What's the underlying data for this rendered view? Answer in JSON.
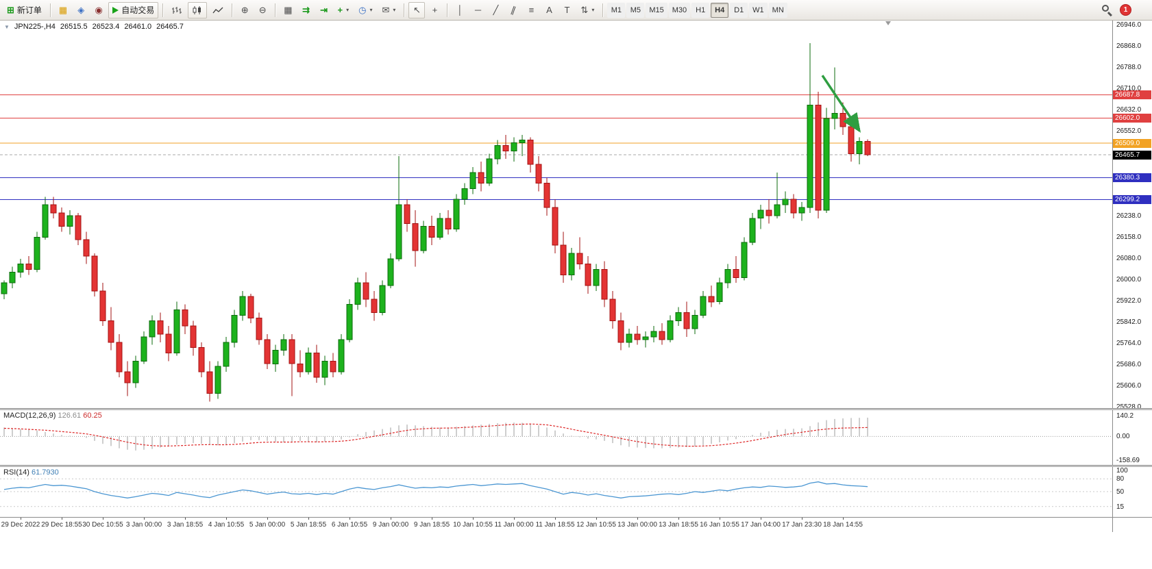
{
  "toolbar": {
    "new_order_label": "新订单",
    "autotrading_label": "自动交易",
    "timeframes": [
      "M1",
      "M5",
      "M15",
      "M30",
      "H1",
      "H4",
      "D1",
      "W1",
      "MN"
    ],
    "active_timeframe": "H4",
    "notification_count": "1"
  },
  "icons": {
    "new_order": "⊞",
    "market_watch": "▦",
    "navigator": "◈",
    "terminal": "◉",
    "zoom_in": "⊕",
    "zoom_out": "⊖",
    "tile_windows": "▦",
    "auto_scroll": "⇉",
    "chart_shift": "⇥",
    "indicators_plus": "+",
    "periods_clock": "◷",
    "templates_mail": "✉",
    "cursor": "↖",
    "crosshair": "+",
    "vertical_line": "│",
    "horizontal_line": "─",
    "trendline": "╱",
    "channel": "∥",
    "fibonacci": "≡",
    "text": "A",
    "text_label": "T",
    "arrows": "⇅",
    "caret": "▾",
    "one_click": "▼"
  },
  "chart": {
    "title": {
      "symbol_period": "JPN225-,H4",
      "open": "26515.5",
      "high": "26523.4",
      "low": "26461.0",
      "close": "26465.7"
    },
    "price_axis": {
      "min": 25528,
      "max": 26946,
      "ticks": [
        "26946.0",
        "26868.0",
        "26788.0",
        "26710.0",
        "26632.0",
        "26552.0",
        "26238.0",
        "26158.0",
        "26080.0",
        "26000.0",
        "25922.0",
        "25842.0",
        "25764.0",
        "25686.0",
        "25606.0",
        "25528.0"
      ]
    },
    "hlines": [
      {
        "price": 26687.8,
        "label": "26687.8",
        "color": "#e04040"
      },
      {
        "price": 26602.0,
        "label": "26602.0",
        "color": "#e04040"
      },
      {
        "price": 26509.0,
        "label": "26509.0",
        "color": "#f2a224"
      },
      {
        "price": 26380.3,
        "label": "26380.3",
        "color": "#2f2fc0"
      },
      {
        "price": 26299.2,
        "label": "26299.2",
        "color": "#2f2fc0"
      }
    ],
    "current_price": {
      "price": 26465.7,
      "label": "26465.7",
      "bg": "#000000"
    },
    "annotation_arrow": {
      "from_bar": 99.5,
      "from_price": 26760,
      "to_bar": 104,
      "to_price": 26555
    },
    "shift_marker_bar": 107.5,
    "colors": {
      "up": "#1db21d",
      "up_stroke": "#0b6b0b",
      "down": "#e33434",
      "down_stroke": "#a31212",
      "macd_hist": "#c2c2c2",
      "macd_signal": "#dd2626",
      "rsi_line": "#4a96d2",
      "annotation": "#2f9e41",
      "current_line": "#aaaaaa"
    }
  },
  "chart_data": {
    "type": "candlestick",
    "symbol": "JPN225-",
    "timeframe": "H4",
    "label_start_bar": 2,
    "label_every": 5,
    "time_labels": [
      "29 Dec 2022",
      "29 Dec 18:55",
      "30 Dec 10:55",
      "3 Jan 00:00",
      "3 Jan 18:55",
      "4 Jan 10:55",
      "5 Jan 00:00",
      "5 Jan 18:55",
      "6 Jan 10:55",
      "9 Jan 00:00",
      "9 Jan 18:55",
      "10 Jan 10:55",
      "11 Jan 00:00",
      "11 Jan 18:55",
      "12 Jan 10:55",
      "13 Jan 00:00",
      "13 Jan 18:55",
      "16 Jan 10:55",
      "17 Jan 04:00",
      "17 Jan 23:30",
      "18 Jan 14:55"
    ],
    "ohlc": [
      [
        25950,
        26000,
        25930,
        25990
      ],
      [
        25990,
        26050,
        25970,
        26030
      ],
      [
        26030,
        26080,
        26010,
        26060
      ],
      [
        26060,
        26090,
        26020,
        26040
      ],
      [
        26040,
        26180,
        26030,
        26160
      ],
      [
        26160,
        26310,
        26150,
        26280
      ],
      [
        26280,
        26310,
        26230,
        26250
      ],
      [
        26250,
        26270,
        26180,
        26200
      ],
      [
        26200,
        26260,
        26170,
        26240
      ],
      [
        26240,
        26250,
        26130,
        26150
      ],
      [
        26150,
        26180,
        26060,
        26090
      ],
      [
        26090,
        26100,
        25940,
        25960
      ],
      [
        25960,
        25990,
        25830,
        25850
      ],
      [
        25850,
        25900,
        25740,
        25770
      ],
      [
        25770,
        25800,
        25640,
        25660
      ],
      [
        25660,
        25700,
        25570,
        25620
      ],
      [
        25620,
        25720,
        25600,
        25700
      ],
      [
        25700,
        25810,
        25690,
        25790
      ],
      [
        25790,
        25870,
        25760,
        25850
      ],
      [
        25850,
        25880,
        25770,
        25800
      ],
      [
        25800,
        25830,
        25700,
        25730
      ],
      [
        25730,
        25920,
        25720,
        25890
      ],
      [
        25890,
        25910,
        25800,
        25830
      ],
      [
        25830,
        25850,
        25720,
        25750
      ],
      [
        25750,
        25770,
        25640,
        25660
      ],
      [
        25660,
        25700,
        25550,
        25580
      ],
      [
        25580,
        25700,
        25560,
        25680
      ],
      [
        25680,
        25790,
        25660,
        25770
      ],
      [
        25770,
        25890,
        25750,
        25870
      ],
      [
        25870,
        25960,
        25850,
        25940
      ],
      [
        25940,
        25950,
        25840,
        25860
      ],
      [
        25860,
        25880,
        25760,
        25780
      ],
      [
        25780,
        25800,
        25670,
        25690
      ],
      [
        25690,
        25760,
        25660,
        25740
      ],
      [
        25740,
        25800,
        25720,
        25780
      ],
      [
        25780,
        25800,
        25570,
        25690
      ],
      [
        25690,
        25740,
        25640,
        25660
      ],
      [
        25660,
        25750,
        25650,
        25730
      ],
      [
        25730,
        25760,
        25620,
        25640
      ],
      [
        25640,
        25720,
        25610,
        25700
      ],
      [
        25700,
        25730,
        25640,
        25660
      ],
      [
        25660,
        25800,
        25650,
        25780
      ],
      [
        25780,
        25930,
        25770,
        25910
      ],
      [
        25910,
        26010,
        25890,
        25990
      ],
      [
        25990,
        26030,
        25900,
        25930
      ],
      [
        25930,
        25960,
        25850,
        25880
      ],
      [
        25880,
        26000,
        25870,
        25980
      ],
      [
        25980,
        26100,
        25970,
        26080
      ],
      [
        26080,
        26460,
        26070,
        26280
      ],
      [
        26280,
        26300,
        26180,
        26210
      ],
      [
        26210,
        26260,
        26050,
        26110
      ],
      [
        26110,
        26220,
        26100,
        26200
      ],
      [
        26200,
        26240,
        26130,
        26160
      ],
      [
        26160,
        26250,
        26150,
        26230
      ],
      [
        26230,
        26260,
        26170,
        26190
      ],
      [
        26190,
        26320,
        26180,
        26300
      ],
      [
        26300,
        26360,
        26280,
        26340
      ],
      [
        26340,
        26420,
        26320,
        26400
      ],
      [
        26400,
        26440,
        26330,
        26360
      ],
      [
        26360,
        26470,
        26350,
        26450
      ],
      [
        26450,
        26520,
        26430,
        26500
      ],
      [
        26500,
        26540,
        26450,
        26480
      ],
      [
        26480,
        26530,
        26440,
        26510
      ],
      [
        26510,
        26540,
        26460,
        26520
      ],
      [
        26520,
        26530,
        26400,
        26430
      ],
      [
        26430,
        26460,
        26330,
        26360
      ],
      [
        26360,
        26380,
        26240,
        26270
      ],
      [
        26270,
        26300,
        26100,
        26130
      ],
      [
        26130,
        26180,
        25990,
        26020
      ],
      [
        26020,
        26120,
        26000,
        26100
      ],
      [
        26100,
        26160,
        26040,
        26060
      ],
      [
        26060,
        26090,
        25950,
        25980
      ],
      [
        25980,
        26060,
        25960,
        26040
      ],
      [
        26040,
        26070,
        25900,
        25930
      ],
      [
        25930,
        25960,
        25820,
        25850
      ],
      [
        25850,
        25880,
        25740,
        25770
      ],
      [
        25770,
        25820,
        25750,
        25800
      ],
      [
        25800,
        25830,
        25760,
        25780
      ],
      [
        25780,
        25810,
        25750,
        25790
      ],
      [
        25790,
        25830,
        25770,
        25810
      ],
      [
        25810,
        25840,
        25760,
        25780
      ],
      [
        25780,
        25870,
        25770,
        25850
      ],
      [
        25850,
        25900,
        25830,
        25880
      ],
      [
        25880,
        25920,
        25790,
        25820
      ],
      [
        25820,
        25890,
        25800,
        25870
      ],
      [
        25870,
        25960,
        25860,
        25940
      ],
      [
        25940,
        25980,
        25900,
        25920
      ],
      [
        25920,
        26010,
        25910,
        25990
      ],
      [
        25990,
        26060,
        25970,
        26040
      ],
      [
        26040,
        26090,
        25990,
        26010
      ],
      [
        26010,
        26160,
        26000,
        26140
      ],
      [
        26140,
        26250,
        26130,
        26230
      ],
      [
        26230,
        26280,
        26190,
        26260
      ],
      [
        26260,
        26300,
        26210,
        26240
      ],
      [
        26240,
        26400,
        26230,
        26280
      ],
      [
        26280,
        26330,
        26250,
        26300
      ],
      [
        26300,
        26320,
        26230,
        26250
      ],
      [
        26250,
        26290,
        26220,
        26270
      ],
      [
        26270,
        26880,
        26250,
        26650
      ],
      [
        26650,
        26700,
        26230,
        26260
      ],
      [
        26260,
        26640,
        26250,
        26600
      ],
      [
        26600,
        26790,
        26560,
        26620
      ],
      [
        26620,
        26660,
        26540,
        26570
      ],
      [
        26570,
        26600,
        26440,
        26470
      ],
      [
        26470,
        26530,
        26430,
        26515
      ],
      [
        26515.5,
        26523.4,
        26461.0,
        26465.7
      ]
    ]
  },
  "macd": {
    "label": "MACD(12,26,9)",
    "main_value": "126.61",
    "signal_value": "60.25",
    "axis": {
      "top_value": 140.2,
      "top": "140.2",
      "zero": "0.00",
      "bottom_value": -158.69,
      "bottom": "-158.69"
    },
    "range": {
      "min": -165,
      "max": 150
    },
    "histogram": [
      60,
      55,
      50,
      45,
      40,
      30,
      20,
      10,
      5,
      0,
      -10,
      -30,
      -50,
      -65,
      -80,
      -90,
      -95,
      -90,
      -85,
      -75,
      -65,
      -55,
      -50,
      -45,
      -50,
      -55,
      -60,
      -55,
      -45,
      -35,
      -25,
      -25,
      -30,
      -35,
      -40,
      -35,
      -30,
      -35,
      -40,
      -35,
      -30,
      -20,
      -5,
      15,
      30,
      40,
      50,
      60,
      75,
      80,
      75,
      70,
      65,
      60,
      60,
      65,
      70,
      75,
      80,
      85,
      90,
      92,
      94,
      92,
      85,
      75,
      60,
      40,
      20,
      5,
      -5,
      -15,
      -20,
      -30,
      -45,
      -60,
      -70,
      -75,
      -78,
      -80,
      -80,
      -78,
      -75,
      -72,
      -68,
      -60,
      -50,
      -40,
      -28,
      -18,
      -5,
      10,
      25,
      35,
      45,
      50,
      52,
      55,
      70,
      95,
      110,
      118,
      122,
      125,
      126,
      126.61
    ],
    "signal": [
      55,
      53,
      51,
      48,
      45,
      42,
      38,
      33,
      28,
      23,
      17,
      8,
      -3,
      -15,
      -27,
      -39,
      -49,
      -57,
      -62,
      -65,
      -65,
      -63,
      -61,
      -58,
      -56,
      -55,
      -56,
      -56,
      -54,
      -50,
      -45,
      -41,
      -39,
      -38,
      -38,
      -38,
      -36,
      -36,
      -37,
      -36,
      -35,
      -32,
      -27,
      -19,
      -9,
      1,
      11,
      21,
      32,
      41,
      48,
      52,
      55,
      56,
      57,
      58,
      61,
      64,
      67,
      70,
      74,
      78,
      81,
      83,
      84,
      82,
      78,
      70,
      60,
      49,
      38,
      28,
      18,
      8,
      -3,
      -14,
      -25,
      -35,
      -44,
      -51,
      -57,
      -61,
      -64,
      -66,
      -66,
      -65,
      -62,
      -58,
      -52,
      -45,
      -37,
      -28,
      -17,
      -7,
      3,
      13,
      21,
      28,
      36,
      44,
      50,
      54,
      57,
      58,
      59,
      60.25
    ]
  },
  "rsi": {
    "label": "RSI(14)",
    "value": "61.7930",
    "levels": [
      {
        "value": 100,
        "label": "100"
      },
      {
        "value": 80,
        "label": "80"
      },
      {
        "value": 50,
        "label": "50"
      },
      {
        "value": 15,
        "label": "15"
      }
    ],
    "series": [
      55,
      58,
      60,
      59,
      63,
      67,
      64,
      65,
      63,
      60,
      57,
      50,
      45,
      41,
      38,
      35,
      38,
      42,
      46,
      44,
      41,
      48,
      45,
      42,
      38,
      36,
      42,
      46,
      50,
      54,
      52,
      48,
      44,
      47,
      49,
      45,
      44,
      46,
      43,
      46,
      44,
      50,
      56,
      60,
      57,
      55,
      59,
      62,
      66,
      62,
      58,
      60,
      59,
      61,
      60,
      63,
      65,
      67,
      64,
      66,
      68,
      67,
      68,
      69,
      64,
      60,
      56,
      50,
      44,
      48,
      46,
      42,
      45,
      41,
      38,
      35,
      38,
      39,
      40,
      42,
      44,
      45,
      43,
      46,
      50,
      48,
      51,
      54,
      52,
      56,
      59,
      61,
      60,
      63,
      62,
      60,
      61,
      63,
      70,
      73,
      68,
      69,
      66,
      64,
      63,
      61.79
    ]
  }
}
